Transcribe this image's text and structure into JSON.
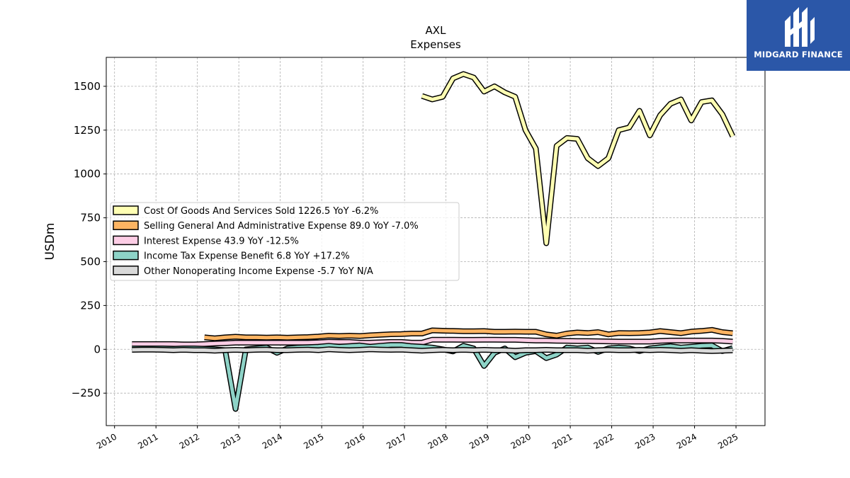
{
  "chart_data": {
    "type": "line",
    "title": "AXL",
    "subtitle": "Expenses",
    "ylabel": "USDm",
    "xlabel": "",
    "xlim": [
      2009.8,
      2025.7
    ],
    "ylim": [
      -435,
      1665
    ],
    "yticks": [
      -250,
      0,
      250,
      500,
      750,
      1000,
      1250,
      1500
    ],
    "ytick_labels": [
      "−250",
      "0",
      "250",
      "500",
      "750",
      "1000",
      "1250",
      "1500"
    ],
    "xticks": [
      2010,
      2011,
      2012,
      2013,
      2014,
      2015,
      2016,
      2017,
      2018,
      2019,
      2020,
      2021,
      2022,
      2023,
      2024,
      2025
    ],
    "xtick_labels": [
      "2010",
      "2011",
      "2012",
      "2013",
      "2014",
      "2015",
      "2016",
      "2017",
      "2018",
      "2019",
      "2020",
      "2021",
      "2022",
      "2023",
      "2024",
      "2025"
    ],
    "grid": true,
    "legend_position": "center-left",
    "series": [
      {
        "name": "Cost Of Goods And Services Sold",
        "legend_label": "Cost Of Goods And Services Sold  1226.5 YoY -6.2%",
        "color": "#ffffb3",
        "points": [
          [
            2017.42,
            1445
          ],
          [
            2017.67,
            1425
          ],
          [
            2017.92,
            1440
          ],
          [
            2018.17,
            1545
          ],
          [
            2018.42,
            1570
          ],
          [
            2018.67,
            1550
          ],
          [
            2018.92,
            1470
          ],
          [
            2019.17,
            1500
          ],
          [
            2019.42,
            1465
          ],
          [
            2019.67,
            1440
          ],
          [
            2019.92,
            1250
          ],
          [
            2020.17,
            1145
          ],
          [
            2020.42,
            605
          ],
          [
            2020.67,
            1160
          ],
          [
            2020.92,
            1205
          ],
          [
            2021.17,
            1200
          ],
          [
            2021.42,
            1090
          ],
          [
            2021.67,
            1045
          ],
          [
            2021.92,
            1090
          ],
          [
            2022.17,
            1250
          ],
          [
            2022.42,
            1265
          ],
          [
            2022.67,
            1360
          ],
          [
            2022.92,
            1220
          ],
          [
            2023.17,
            1335
          ],
          [
            2023.42,
            1400
          ],
          [
            2023.67,
            1425
          ],
          [
            2023.92,
            1305
          ],
          [
            2024.17,
            1410
          ],
          [
            2024.42,
            1420
          ],
          [
            2024.67,
            1340
          ],
          [
            2024.92,
            1215
          ]
        ]
      },
      {
        "name": "Selling General And Administrative Expense",
        "legend_label": "Selling General And Administrative Expense  89.0 YoY -7.0%",
        "color": "#fdb462",
        "points": [
          [
            2012.17,
            68
          ],
          [
            2012.42,
            63
          ],
          [
            2012.67,
            68
          ],
          [
            2012.92,
            72
          ],
          [
            2013.17,
            68
          ],
          [
            2013.42,
            68
          ],
          [
            2013.67,
            67
          ],
          [
            2013.92,
            68
          ],
          [
            2014.17,
            66
          ],
          [
            2014.42,
            68
          ],
          [
            2014.67,
            70
          ],
          [
            2014.92,
            73
          ],
          [
            2015.17,
            78
          ],
          [
            2015.42,
            76
          ],
          [
            2015.67,
            78
          ],
          [
            2015.92,
            76
          ],
          [
            2016.17,
            80
          ],
          [
            2016.42,
            83
          ],
          [
            2016.67,
            86
          ],
          [
            2016.92,
            87
          ],
          [
            2017.17,
            90
          ],
          [
            2017.42,
            90
          ],
          [
            2017.67,
            108
          ],
          [
            2017.92,
            106
          ],
          [
            2018.17,
            105
          ],
          [
            2018.42,
            103
          ],
          [
            2018.67,
            103
          ],
          [
            2018.92,
            104
          ],
          [
            2019.17,
            100
          ],
          [
            2019.42,
            100
          ],
          [
            2019.67,
            101
          ],
          [
            2019.92,
            100
          ],
          [
            2020.17,
            100
          ],
          [
            2020.42,
            85
          ],
          [
            2020.67,
            78
          ],
          [
            2020.92,
            90
          ],
          [
            2021.17,
            96
          ],
          [
            2021.42,
            93
          ],
          [
            2021.67,
            98
          ],
          [
            2021.92,
            85
          ],
          [
            2022.17,
            93
          ],
          [
            2022.42,
            92
          ],
          [
            2022.67,
            93
          ],
          [
            2022.92,
            96
          ],
          [
            2023.17,
            104
          ],
          [
            2023.42,
            98
          ],
          [
            2023.67,
            92
          ],
          [
            2023.92,
            101
          ],
          [
            2024.17,
            105
          ],
          [
            2024.42,
            111
          ],
          [
            2024.67,
            98
          ],
          [
            2024.92,
            92
          ]
        ]
      },
      {
        "name": "Interest Expense",
        "legend_label": "Interest Expense  43.9 YoY -12.5%",
        "color": "#fccde5",
        "points": [
          [
            2010.42,
            30
          ],
          [
            2010.67,
            30
          ],
          [
            2010.92,
            30
          ],
          [
            2011.17,
            30
          ],
          [
            2011.42,
            30
          ],
          [
            2011.67,
            28
          ],
          [
            2011.92,
            28
          ],
          [
            2012.17,
            30
          ],
          [
            2012.42,
            33
          ],
          [
            2012.67,
            35
          ],
          [
            2012.92,
            38
          ],
          [
            2013.17,
            38
          ],
          [
            2013.42,
            38
          ],
          [
            2013.67,
            38
          ],
          [
            2013.92,
            38
          ],
          [
            2014.17,
            38
          ],
          [
            2014.42,
            38
          ],
          [
            2014.67,
            38
          ],
          [
            2014.92,
            40
          ],
          [
            2015.17,
            43
          ],
          [
            2015.42,
            42
          ],
          [
            2015.67,
            42
          ],
          [
            2015.92,
            38
          ],
          [
            2016.17,
            38
          ],
          [
            2016.42,
            40
          ],
          [
            2016.67,
            42
          ],
          [
            2016.92,
            42
          ],
          [
            2017.17,
            38
          ],
          [
            2017.42,
            38
          ],
          [
            2017.67,
            55
          ],
          [
            2017.92,
            55
          ],
          [
            2018.17,
            55
          ],
          [
            2018.42,
            54
          ],
          [
            2018.67,
            54
          ],
          [
            2018.92,
            55
          ],
          [
            2019.17,
            55
          ],
          [
            2019.42,
            54
          ],
          [
            2019.67,
            54
          ],
          [
            2019.92,
            52
          ],
          [
            2020.17,
            50
          ],
          [
            2020.42,
            50
          ],
          [
            2020.67,
            49
          ],
          [
            2020.92,
            48
          ],
          [
            2021.17,
            47
          ],
          [
            2021.42,
            47
          ],
          [
            2021.67,
            46
          ],
          [
            2021.92,
            45
          ],
          [
            2022.17,
            44
          ],
          [
            2022.42,
            44
          ],
          [
            2022.67,
            44
          ],
          [
            2022.92,
            44
          ],
          [
            2023.17,
            48
          ],
          [
            2023.42,
            50
          ],
          [
            2023.67,
            50
          ],
          [
            2023.92,
            50
          ],
          [
            2024.17,
            50
          ],
          [
            2024.42,
            50
          ],
          [
            2024.67,
            48
          ],
          [
            2024.92,
            44
          ]
        ]
      },
      {
        "name": "Income Tax Expense Benefit",
        "legend_label": "Income Tax Expense Benefit  6.8 YoY +17.2%",
        "color": "#8dd3c7",
        "points": [
          [
            2010.42,
            5
          ],
          [
            2010.67,
            5
          ],
          [
            2010.92,
            5
          ],
          [
            2011.17,
            5
          ],
          [
            2011.42,
            3
          ],
          [
            2011.67,
            5
          ],
          [
            2011.92,
            5
          ],
          [
            2012.17,
            3
          ],
          [
            2012.42,
            0
          ],
          [
            2012.67,
            -5
          ],
          [
            2012.92,
            -340
          ],
          [
            2013.17,
            0
          ],
          [
            2013.42,
            5
          ],
          [
            2013.67,
            10
          ],
          [
            2013.92,
            -20
          ],
          [
            2014.17,
            5
          ],
          [
            2014.42,
            10
          ],
          [
            2014.67,
            12
          ],
          [
            2014.92,
            15
          ],
          [
            2015.17,
            20
          ],
          [
            2015.42,
            15
          ],
          [
            2015.67,
            18
          ],
          [
            2015.92,
            22
          ],
          [
            2016.17,
            15
          ],
          [
            2016.42,
            20
          ],
          [
            2016.67,
            25
          ],
          [
            2016.92,
            25
          ],
          [
            2017.17,
            18
          ],
          [
            2017.42,
            15
          ],
          [
            2017.67,
            10
          ],
          [
            2017.92,
            0
          ],
          [
            2018.17,
            -12
          ],
          [
            2018.42,
            20
          ],
          [
            2018.67,
            5
          ],
          [
            2018.92,
            -95
          ],
          [
            2019.17,
            -20
          ],
          [
            2019.42,
            5
          ],
          [
            2019.67,
            -45
          ],
          [
            2019.92,
            -20
          ],
          [
            2020.17,
            -10
          ],
          [
            2020.42,
            -50
          ],
          [
            2020.67,
            -30
          ],
          [
            2020.92,
            10
          ],
          [
            2021.17,
            5
          ],
          [
            2021.42,
            10
          ],
          [
            2021.67,
            -15
          ],
          [
            2021.92,
            5
          ],
          [
            2022.17,
            10
          ],
          [
            2022.42,
            5
          ],
          [
            2022.67,
            -10
          ],
          [
            2022.92,
            5
          ],
          [
            2023.17,
            12
          ],
          [
            2023.42,
            18
          ],
          [
            2023.67,
            10
          ],
          [
            2023.92,
            15
          ],
          [
            2024.17,
            20
          ],
          [
            2024.42,
            22
          ],
          [
            2024.67,
            -10
          ],
          [
            2024.92,
            7
          ]
        ]
      },
      {
        "name": "Other Nonoperating Income Expense",
        "legend_label": "Other Nonoperating Income Expense  -5.7 YoY N/A",
        "color": "#d9d9d9",
        "points": [
          [
            2010.42,
            -3
          ],
          [
            2010.67,
            -2
          ],
          [
            2010.92,
            -2
          ],
          [
            2011.17,
            -3
          ],
          [
            2011.42,
            -5
          ],
          [
            2011.67,
            -3
          ],
          [
            2011.92,
            -5
          ],
          [
            2012.17,
            -5
          ],
          [
            2012.42,
            -8
          ],
          [
            2012.67,
            -5
          ],
          [
            2012.92,
            -3
          ],
          [
            2013.17,
            -5
          ],
          [
            2013.42,
            -3
          ],
          [
            2013.67,
            -2
          ],
          [
            2013.92,
            -5
          ],
          [
            2014.17,
            -5
          ],
          [
            2014.42,
            -3
          ],
          [
            2014.67,
            -2
          ],
          [
            2014.92,
            -5
          ],
          [
            2015.17,
            0
          ],
          [
            2015.42,
            -3
          ],
          [
            2015.67,
            -5
          ],
          [
            2015.92,
            -3
          ],
          [
            2016.17,
            0
          ],
          [
            2016.42,
            -2
          ],
          [
            2016.67,
            -3
          ],
          [
            2016.92,
            -2
          ],
          [
            2017.17,
            -5
          ],
          [
            2017.42,
            -8
          ],
          [
            2017.67,
            -5
          ],
          [
            2017.92,
            -3
          ],
          [
            2018.17,
            -5
          ],
          [
            2018.42,
            -3
          ],
          [
            2018.67,
            -5
          ],
          [
            2018.92,
            -3
          ],
          [
            2019.17,
            -5
          ],
          [
            2019.42,
            -5
          ],
          [
            2019.67,
            -8
          ],
          [
            2019.92,
            -5
          ],
          [
            2020.17,
            -5
          ],
          [
            2020.42,
            -3
          ],
          [
            2020.67,
            -5
          ],
          [
            2020.92,
            -5
          ],
          [
            2021.17,
            -5
          ],
          [
            2021.42,
            -8
          ],
          [
            2021.67,
            -5
          ],
          [
            2021.92,
            -3
          ],
          [
            2022.17,
            -5
          ],
          [
            2022.42,
            -5
          ],
          [
            2022.67,
            -3
          ],
          [
            2022.92,
            -5
          ],
          [
            2023.17,
            -3
          ],
          [
            2023.42,
            -5
          ],
          [
            2023.67,
            -8
          ],
          [
            2023.92,
            -5
          ],
          [
            2024.17,
            -8
          ],
          [
            2024.42,
            -10
          ],
          [
            2024.67,
            -8
          ],
          [
            2024.92,
            -6
          ]
        ]
      }
    ]
  },
  "logo": {
    "text": "MIDGARD FINANCE",
    "color": "#2b57a8"
  }
}
